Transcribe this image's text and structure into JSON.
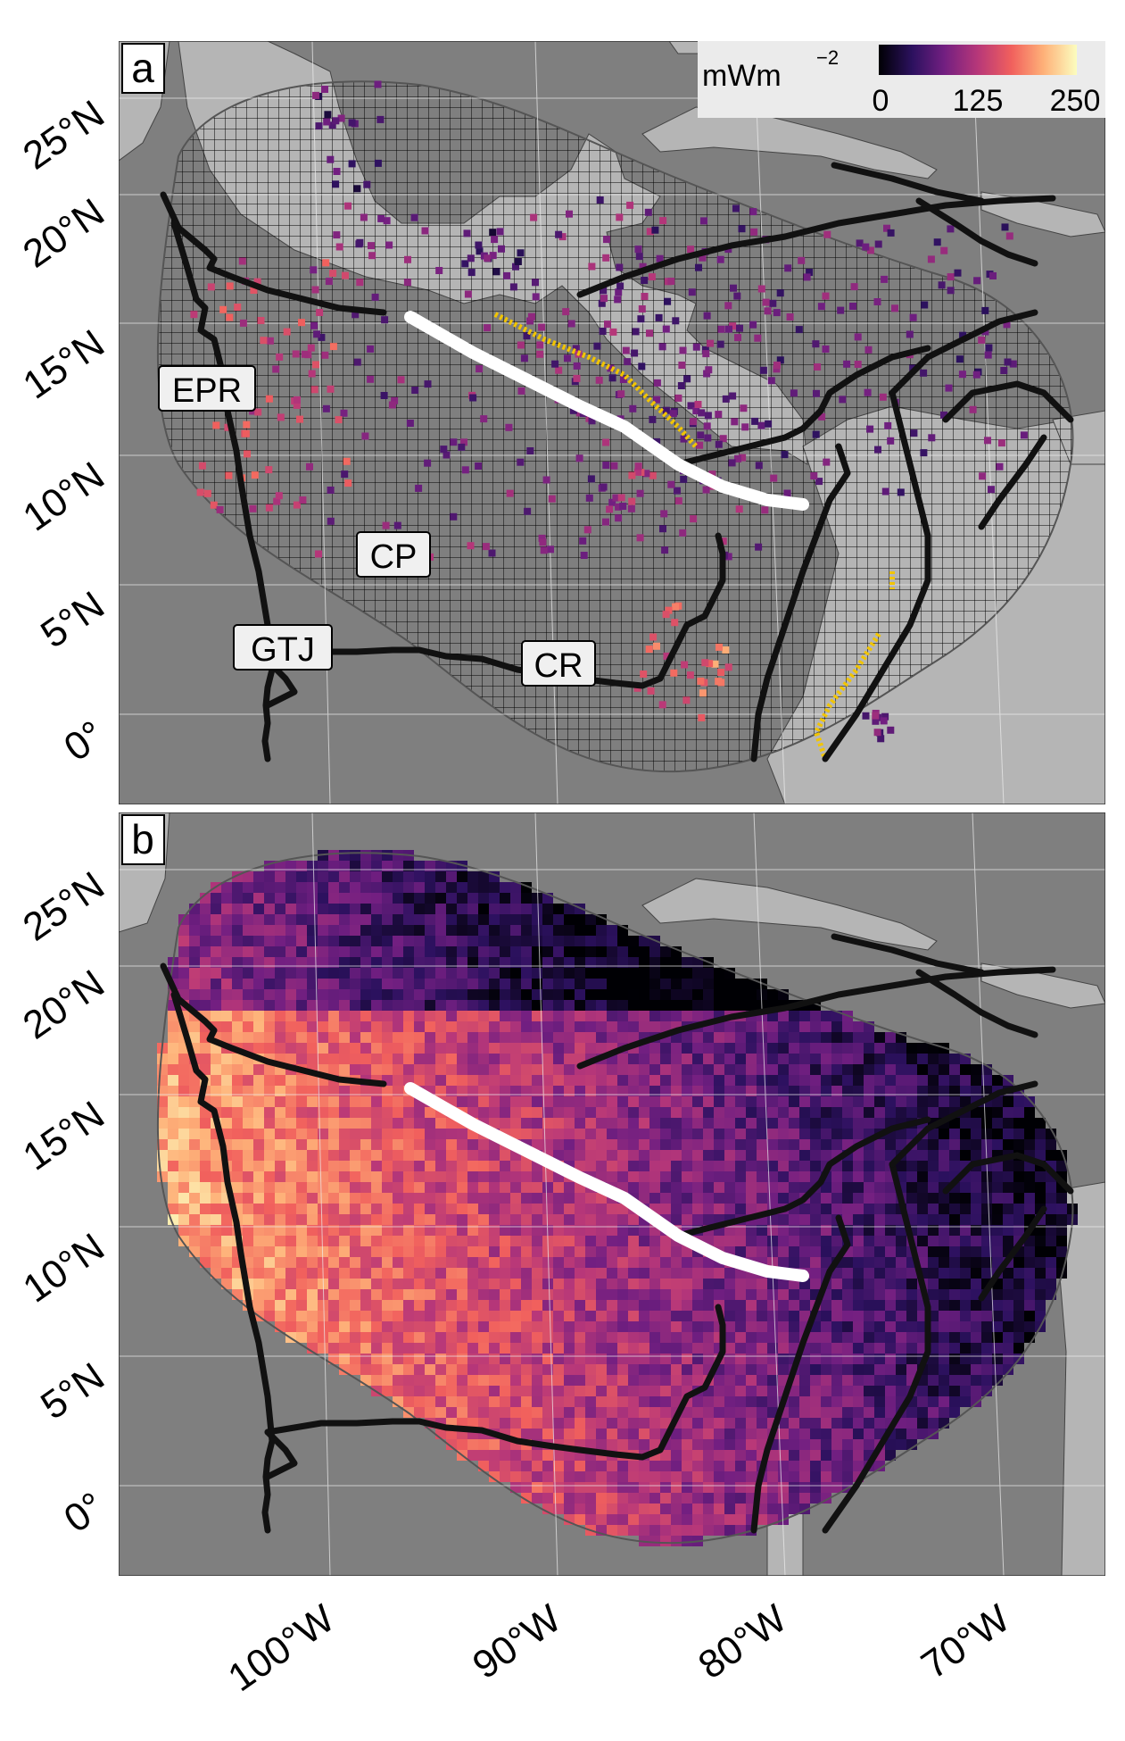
{
  "panels": [
    {
      "tag": "a"
    },
    {
      "tag": "b"
    }
  ],
  "legend": {
    "unit": "mWm",
    "unit_exp": "−2",
    "ticks": [
      "0",
      "125",
      "250"
    ],
    "colormap": [
      "#000004",
      "#2c115f",
      "#721f81",
      "#b73779",
      "#f1605d",
      "#feb078",
      "#fcfdbf"
    ],
    "range": [
      0,
      250
    ]
  },
  "region_labels": [
    "EPR",
    "CP",
    "GTJ",
    "CR"
  ],
  "lat_ticks": [
    "25°N",
    "20°N",
    "15°N",
    "10°N",
    "5°N",
    "0°"
  ],
  "lon_ticks": [
    "100°W",
    "90°W",
    "80°W",
    "70°W"
  ],
  "colors": {
    "ocean": "#7f7f7f",
    "land": "#b5b5b5",
    "plate_boundary": "#111111",
    "trench_segment": "#ffffff",
    "volcano_points": "#f2c500"
  }
}
